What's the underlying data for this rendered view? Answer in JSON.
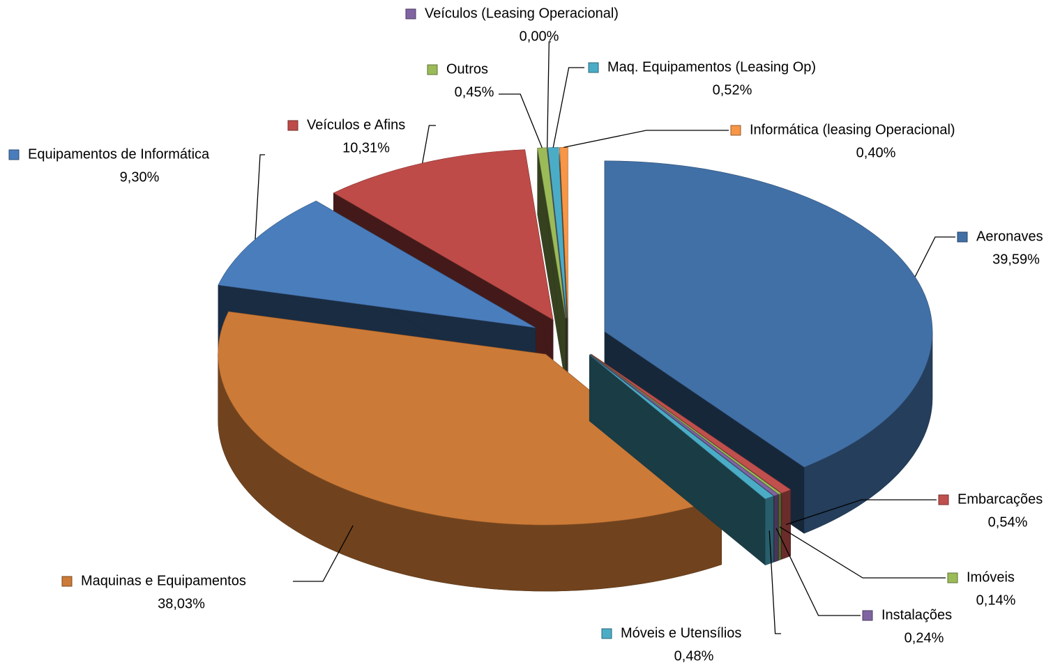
{
  "chart_data": {
    "type": "pie3d",
    "categories": [
      "Aeronaves",
      "Embarcações",
      "Imóveis",
      "Instalações",
      "Móveis e Utensílios",
      "Maquinas e Equipamentos",
      "Equipamentos de Informática",
      "Veículos e Afins",
      "Outros",
      "Veículos (Leasing Operacional)",
      "Maq. Equipamentos (Leasing Op)",
      "Informática (leasing Operacional)"
    ],
    "values": [
      39.59,
      0.54,
      0.14,
      0.24,
      0.48,
      38.03,
      9.3,
      10.31,
      0.45,
      0.0,
      0.52,
      0.4
    ],
    "value_labels": [
      "39,59%",
      "0,54%",
      "0,14%",
      "0,24%",
      "0,48%",
      "38,03%",
      "9,30%",
      "10,31%",
      "0,45%",
      "0,00%",
      "0,52%",
      "0,40%"
    ],
    "colors": [
      "#4170a6",
      "#c0504d",
      "#9bbb59",
      "#8064a2",
      "#4bacc6",
      "#cc7a37",
      "#4a7dbc",
      "#be4b48",
      "#9bbb59",
      "#8064a2",
      "#4bacc6",
      "#f79646"
    ]
  }
}
